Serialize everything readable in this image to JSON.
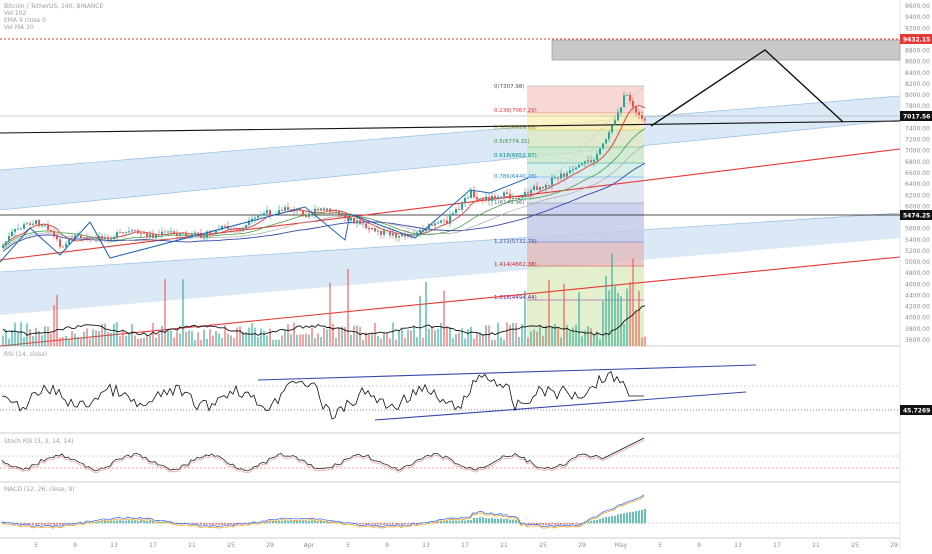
{
  "header": {
    "line1": "Bitcoin / TetherUS, 240, BINANCE",
    "line2": "Vol 102",
    "line3": "EMA 9 close 0",
    "line4": "Vol MA 20"
  },
  "price_levels": {
    "resistance_tag": "9432.15",
    "current_tag": "7017.56",
    "support_tag": "5474.25",
    "rsi_tag": "45.7269"
  },
  "rsi_label": "RSI (14, close)",
  "stoch_label": "Stoch RSI (3, 3, 14, 14)",
  "macd_label": "MACD (12, 26, close, 9)",
  "colors": {
    "up": "#26a69a",
    "down": "#ef5350",
    "channel_fill": "#cfe2f3",
    "red_trend": "#e53935",
    "blue_trend": "#3949ab",
    "zigzag": "#1f63b8"
  },
  "chart_data": [
    {
      "type": "candlestick",
      "title": "Bitcoin / TetherUS, 240, BINANCE",
      "y_ticks": [
        "9600.00",
        "9400.00",
        "9200.00",
        "9000.00",
        "8800.00",
        "8600.00",
        "8400.00",
        "8200.00",
        "8000.00",
        "7800.00",
        "7600.00",
        "7400.00",
        "7200.00",
        "7000.00",
        "6800.00",
        "6600.00",
        "6400.00",
        "6200.00",
        "6000.00",
        "5800.00",
        "5600.00",
        "5400.00",
        "5200.00",
        "5000.00",
        "4800.00",
        "4600.00",
        "4400.00",
        "4200.00",
        "4000.00",
        "3800.00",
        "3600.00"
      ],
      "x_ticks": [
        "5",
        "9",
        "13",
        "17",
        "21",
        "25",
        "29",
        "Apr",
        "5",
        "9",
        "13",
        "17",
        "21",
        "25",
        "29",
        "May",
        "5",
        "9",
        "13",
        "17",
        "21",
        "25",
        "29"
      ],
      "fibonacci": [
        {
          "ratio": "0",
          "value": "7307.98"
        },
        {
          "ratio": "0.236",
          "value": "7067.29"
        },
        {
          "ratio": "0.382",
          "value": "6919.89"
        },
        {
          "ratio": "0.5",
          "value": "6774.31"
        },
        {
          "ratio": "0.618",
          "value": "6652.97"
        },
        {
          "ratio": "0.786",
          "value": "6440.28"
        },
        {
          "ratio": "1",
          "value": "6149.96"
        },
        {
          "ratio": "1.272",
          "value": "5732.79"
        },
        {
          "ratio": "1.414",
          "value": "4862.38"
        },
        {
          "ratio": "1.618",
          "value": "4494.44"
        }
      ]
    }
  ]
}
